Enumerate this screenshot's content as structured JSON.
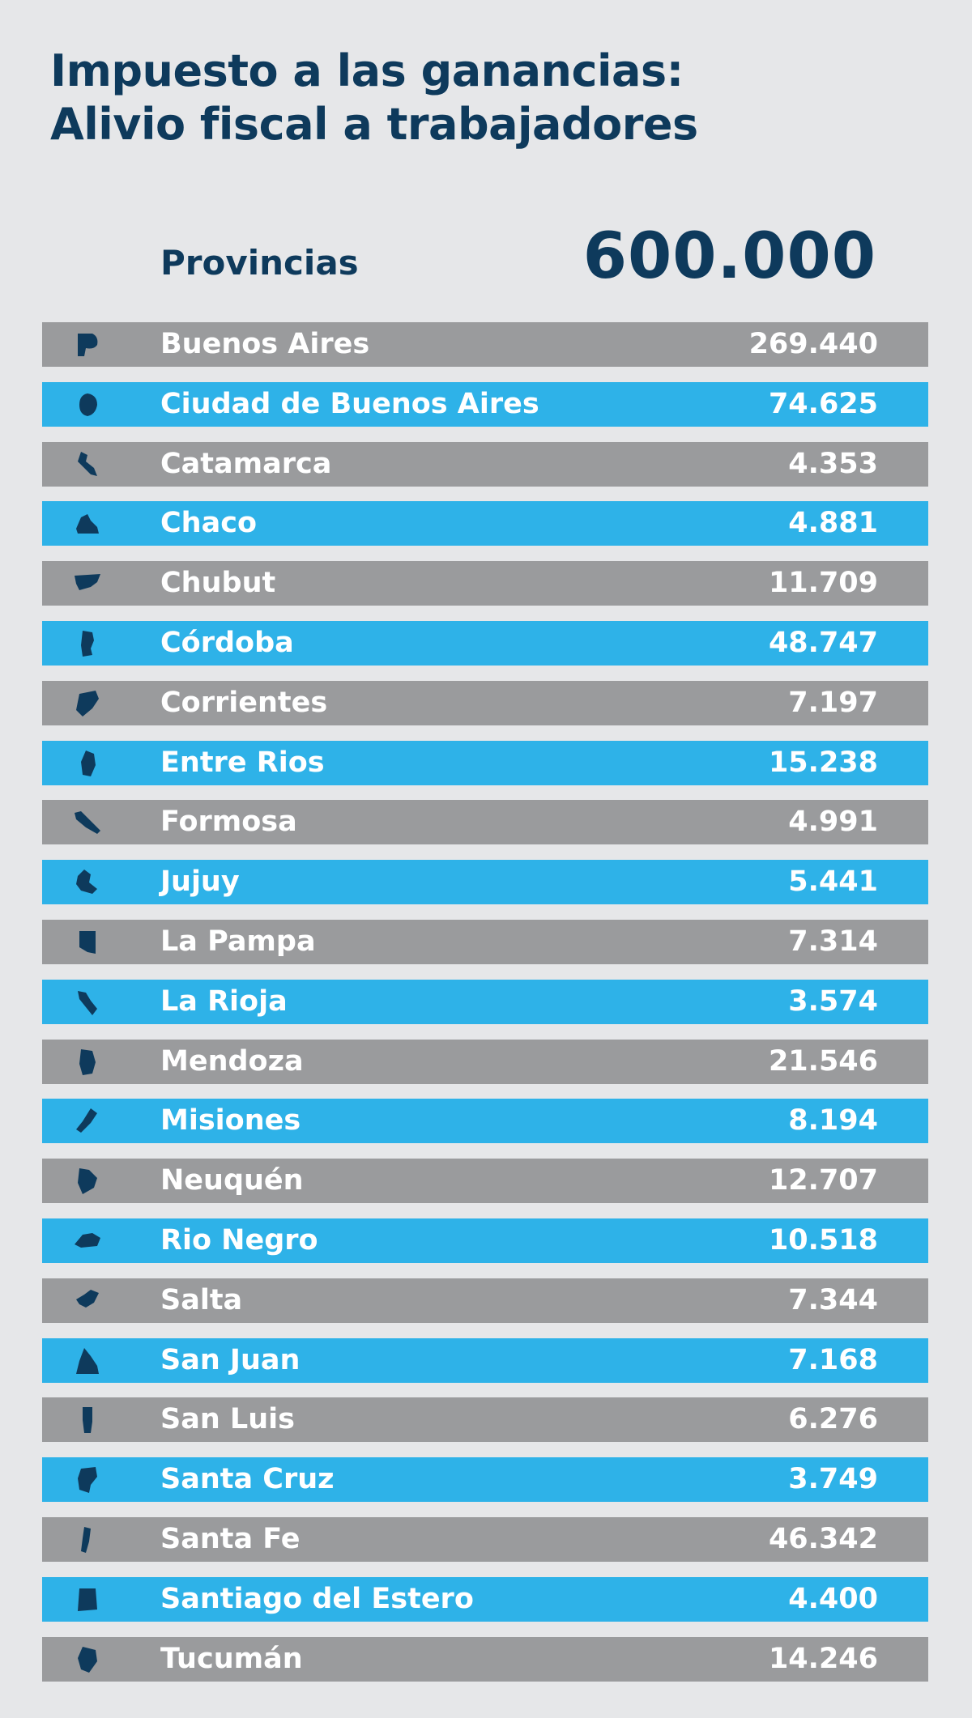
{
  "title": {
    "line1": "Impuesto a las ganancias:",
    "line2": "Alivio fiscal a trabajadores"
  },
  "header": {
    "label": "Provincias",
    "total": "600.000"
  },
  "colors": {
    "background": "#e6e7e9",
    "title": "#0e3a5c",
    "row_gray": "#9a9b9d",
    "row_blue": "#2eb2e8",
    "icon": "#0e3a5c"
  },
  "rows": [
    {
      "name": "Buenos Aires",
      "value": "269.440",
      "icon": "buenos-aires-map-icon",
      "style": "gray"
    },
    {
      "name": "Ciudad de Buenos Aires",
      "value": "74.625",
      "icon": "ciudad-de-buenos-aires-map-icon",
      "style": "blue"
    },
    {
      "name": "Catamarca",
      "value": "4.353",
      "icon": "catamarca-map-icon",
      "style": "gray"
    },
    {
      "name": "Chaco",
      "value": "4.881",
      "icon": "chaco-map-icon",
      "style": "blue"
    },
    {
      "name": "Chubut",
      "value": "11.709",
      "icon": "chubut-map-icon",
      "style": "gray"
    },
    {
      "name": "Córdoba",
      "value": "48.747",
      "icon": "cordoba-map-icon",
      "style": "blue"
    },
    {
      "name": "Corrientes",
      "value": "7.197",
      "icon": "corrientes-map-icon",
      "style": "gray"
    },
    {
      "name": "Entre Rios",
      "value": "15.238",
      "icon": "entre-rios-map-icon",
      "style": "blue"
    },
    {
      "name": "Formosa",
      "value": "4.991",
      "icon": "formosa-map-icon",
      "style": "gray"
    },
    {
      "name": "Jujuy",
      "value": "5.441",
      "icon": "jujuy-map-icon",
      "style": "blue"
    },
    {
      "name": "La Pampa",
      "value": "7.314",
      "icon": "la-pampa-map-icon",
      "style": "gray"
    },
    {
      "name": "La Rioja",
      "value": "3.574",
      "icon": "la-rioja-map-icon",
      "style": "blue"
    },
    {
      "name": "Mendoza",
      "value": "21.546",
      "icon": "mendoza-map-icon",
      "style": "gray"
    },
    {
      "name": "Misiones",
      "value": "8.194",
      "icon": "misiones-map-icon",
      "style": "blue"
    },
    {
      "name": "Neuquén",
      "value": "12.707",
      "icon": "neuquen-map-icon",
      "style": "gray"
    },
    {
      "name": "Rio Negro",
      "value": "10.518",
      "icon": "rio-negro-map-icon",
      "style": "blue"
    },
    {
      "name": "Salta",
      "value": "7.344",
      "icon": "salta-map-icon",
      "style": "gray"
    },
    {
      "name": "San Juan",
      "value": "7.168",
      "icon": "san-juan-map-icon",
      "style": "blue"
    },
    {
      "name": "San Luis",
      "value": "6.276",
      "icon": "san-luis-map-icon",
      "style": "gray"
    },
    {
      "name": "Santa Cruz",
      "value": "3.749",
      "icon": "santa-cruz-map-icon",
      "style": "blue"
    },
    {
      "name": "Santa Fe",
      "value": "46.342",
      "icon": "santa-fe-map-icon",
      "style": "gray"
    },
    {
      "name": "Santiago del Estero",
      "value": "4.400",
      "icon": "santiago-del-estero-map-icon",
      "style": "blue"
    },
    {
      "name": "Tucumán",
      "value": "14.246",
      "icon": "tucuman-map-icon",
      "style": "gray"
    }
  ]
}
